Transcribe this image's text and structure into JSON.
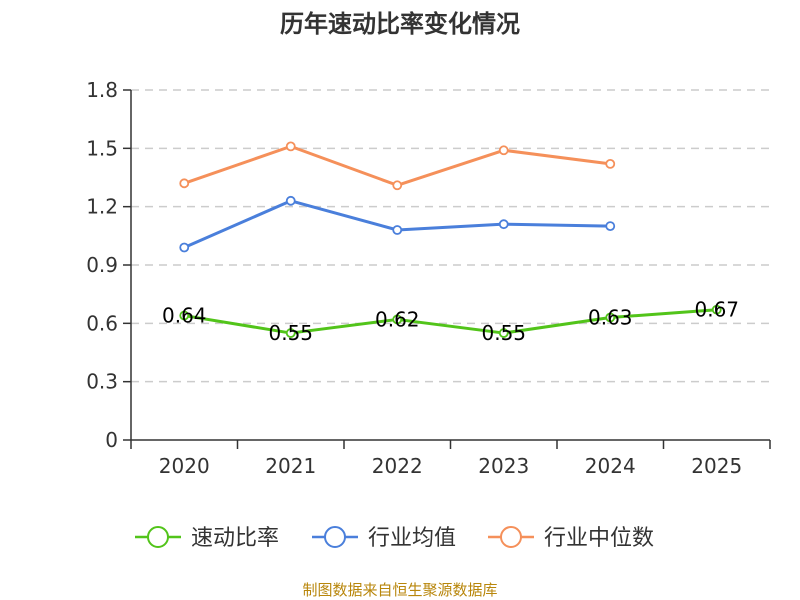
{
  "chart_data": {
    "type": "line",
    "title": "历年速动比率变化情况",
    "categories": [
      "2020",
      "2021",
      "2022",
      "2023",
      "2024",
      "2025"
    ],
    "y_ticks": [
      "0",
      "0.3",
      "0.6",
      "0.9",
      "1.2",
      "1.5",
      "1.8"
    ],
    "ylim": [
      0,
      1.8
    ],
    "grid": true,
    "legend_position": "bottom",
    "series": [
      {
        "name": "速动比率",
        "color": "#52c41a",
        "values": [
          0.64,
          0.55,
          0.62,
          0.55,
          0.63,
          0.67
        ],
        "labels": [
          "0.64",
          "0.55",
          "0.62",
          "0.55",
          "0.63",
          "0.67"
        ]
      },
      {
        "name": "行业均值",
        "color": "#4a7fdb",
        "values": [
          0.99,
          1.23,
          1.08,
          1.11,
          1.1,
          null
        ]
      },
      {
        "name": "行业中位数",
        "color": "#f5905a",
        "values": [
          1.32,
          1.51,
          1.31,
          1.49,
          1.42,
          null
        ]
      }
    ],
    "source": "制图数据来自恒生聚源数据库"
  }
}
